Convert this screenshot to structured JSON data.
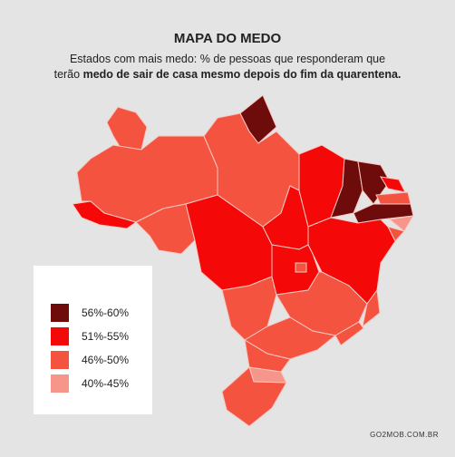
{
  "header": {
    "title": "MAPA DO MEDO",
    "subtitle_line1": "Estados com mais medo: % de pessoas que responderam que",
    "subtitle_line2_start": "terão",
    "subtitle_line2_bold": "medo de sair de casa mesmo depois do fim da quarentena."
  },
  "legend": {
    "items": [
      {
        "label": "56%-60%",
        "color": "#6e0b0b"
      },
      {
        "label": "51%-55%",
        "color": "#f50808"
      },
      {
        "label": "46%-50%",
        "color": "#f4543f"
      },
      {
        "label": "40%-45%",
        "color": "#f6968b"
      }
    ]
  },
  "map": {
    "regions": [
      {
        "color": "#f4543f"
      },
      {
        "color": "#6e0b0b"
      },
      {
        "color": "#f4543f"
      },
      {
        "color": "#f50808"
      },
      {
        "color": "#f4543f"
      },
      {
        "color": "#f4543f"
      },
      {
        "color": "#f50808"
      },
      {
        "color": "#f4543f"
      },
      {
        "color": "#f50808"
      },
      {
        "color": "#f50808"
      },
      {
        "color": "#6e0b0b"
      },
      {
        "color": "#6e0b0b"
      },
      {
        "color": "#f50808"
      },
      {
        "color": "#f4543f"
      },
      {
        "color": "#6e0b0b"
      },
      {
        "color": "#f6968b"
      },
      {
        "color": "#f4543f"
      },
      {
        "color": "#f50808"
      },
      {
        "color": "#f50808"
      },
      {
        "color": "#f4543f"
      },
      {
        "color": "#f4543f"
      },
      {
        "color": "#f4543f"
      },
      {
        "color": "#f4543f"
      },
      {
        "color": "#f4543f"
      },
      {
        "color": "#f6968b"
      },
      {
        "color": "#f4543f"
      },
      {
        "color": "#f4543f"
      }
    ]
  },
  "footer": {
    "source": "GO2MOB.COM.BR"
  }
}
